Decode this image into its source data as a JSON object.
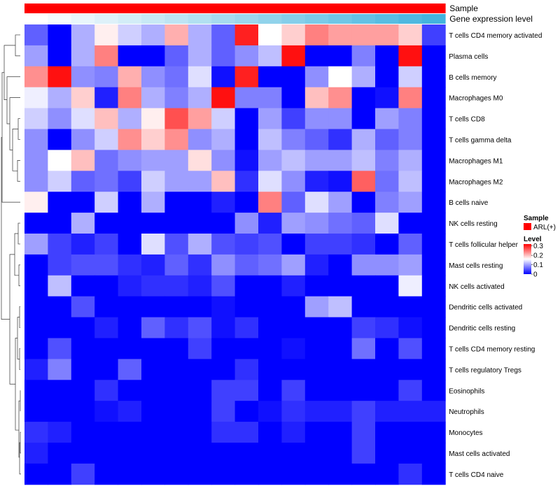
{
  "chart_data": {
    "type": "heatmap",
    "title": "",
    "annotation_tracks": [
      {
        "label": "Sample",
        "colors": [
          "#ff0000"
        ]
      },
      {
        "label": "Gene expression level",
        "colors": [
          "#ffffff",
          "#f4fafd",
          "#e9f6fb",
          "#def1f9",
          "#d3edf7",
          "#c8e9f5",
          "#bde4f3",
          "#b2e0f1",
          "#a7dbef",
          "#9cd7ed",
          "#91d3eb",
          "#86ceea",
          "#7bcae8",
          "#70c6e6",
          "#65c1e4",
          "#5abde2",
          "#4fb8e0",
          "#44b4de"
        ]
      }
    ],
    "legend": {
      "sample_title": "Sample",
      "sample_item": "ARL(+)",
      "sample_color": "#ff0000",
      "level_title": "Level",
      "level_ticks": [
        "0.3",
        "0.2",
        "0.1",
        "0"
      ],
      "level_tick_values": [
        0.3,
        0.2,
        0.1,
        0
      ],
      "level_range": [
        0,
        0.32
      ],
      "colors": {
        "low": "#0000ff",
        "mid": "#ffffff",
        "high": "#ff0000"
      }
    },
    "rows": [
      "T cells CD4 memory activated",
      "Plasma cells",
      "B cells memory",
      "Macrophages M0",
      "T cells CD8",
      "T cells gamma delta",
      "Macrophages M1",
      "Macrophages M2",
      "B cells naive",
      "NK cells resting",
      "T cells follicular helper",
      "Mast cells resting",
      "NK cells activated",
      "Dendritic cells activated",
      "Dendritic cells resting",
      "T cells CD4 memory resting",
      "T cells regulatory  Tregs",
      "Eosinophils",
      "Neutrophils",
      "Monocytes",
      "Mast cells activated",
      "T cells CD4 naive"
    ],
    "values": [
      [
        0.06,
        0.0,
        0.11,
        0.17,
        0.13,
        0.11,
        0.21,
        0.11,
        0.06,
        0.3,
        0.16,
        0.19,
        0.24,
        0.22,
        0.22,
        0.22,
        0.19,
        0.04
      ],
      [
        0.1,
        0.0,
        0.11,
        0.24,
        0.0,
        0.0,
        0.06,
        0.11,
        0.06,
        0.09,
        0.12,
        0.31,
        0.0,
        0.0,
        0.08,
        0.0,
        0.31,
        0.0
      ],
      [
        0.23,
        0.31,
        0.09,
        0.08,
        0.21,
        0.09,
        0.07,
        0.14,
        0.01,
        0.3,
        0.0,
        0.0,
        0.09,
        0.16,
        0.11,
        0.0,
        0.13,
        0.0
      ],
      [
        0.15,
        0.11,
        0.19,
        0.02,
        0.24,
        0.11,
        0.08,
        0.11,
        0.31,
        0.08,
        0.08,
        0.0,
        0.2,
        0.23,
        0.0,
        0.01,
        0.24,
        0.0
      ],
      [
        0.13,
        0.09,
        0.14,
        0.2,
        0.11,
        0.17,
        0.27,
        0.22,
        0.13,
        0.0,
        0.1,
        0.04,
        0.09,
        0.09,
        0.0,
        0.1,
        0.08,
        0.0
      ],
      [
        0.09,
        0.0,
        0.09,
        0.13,
        0.23,
        0.19,
        0.23,
        0.09,
        0.11,
        0.0,
        0.12,
        0.08,
        0.06,
        0.03,
        0.11,
        0.06,
        0.08,
        0.0
      ],
      [
        0.09,
        0.16,
        0.2,
        0.07,
        0.09,
        0.1,
        0.1,
        0.18,
        0.09,
        0.01,
        0.1,
        0.12,
        0.1,
        0.1,
        0.12,
        0.08,
        0.11,
        0.0
      ],
      [
        0.09,
        0.13,
        0.06,
        0.07,
        0.04,
        0.13,
        0.1,
        0.1,
        0.2,
        0.03,
        0.14,
        0.09,
        0.02,
        0.01,
        0.26,
        0.07,
        0.12,
        0.0
      ],
      [
        0.17,
        0.0,
        0.0,
        0.13,
        0.0,
        0.11,
        0.0,
        0.0,
        0.02,
        0.0,
        0.24,
        0.06,
        0.14,
        0.1,
        0.0,
        0.08,
        0.1,
        0.0
      ],
      [
        0.0,
        0.0,
        0.11,
        0.0,
        0.0,
        0.0,
        0.0,
        0.0,
        0.0,
        0.09,
        0.02,
        0.1,
        0.09,
        0.07,
        0.06,
        0.14,
        0.0,
        0.0
      ],
      [
        0.1,
        0.04,
        0.02,
        0.04,
        0.0,
        0.14,
        0.05,
        0.11,
        0.05,
        0.04,
        0.05,
        0.0,
        0.04,
        0.04,
        0.03,
        0.0,
        0.06,
        0.0
      ],
      [
        0.0,
        0.04,
        0.05,
        0.05,
        0.03,
        0.02,
        0.06,
        0.03,
        0.09,
        0.06,
        0.07,
        0.1,
        0.02,
        0.0,
        0.09,
        0.09,
        0.1,
        0.0
      ],
      [
        0.0,
        0.12,
        0.0,
        0.0,
        0.02,
        0.03,
        0.03,
        0.02,
        0.05,
        0.0,
        0.0,
        0.02,
        0.0,
        0.0,
        0.0,
        0.0,
        0.15,
        0.0
      ],
      [
        0.0,
        0.0,
        0.05,
        0.0,
        0.0,
        0.0,
        0.0,
        0.0,
        0.01,
        0.0,
        0.0,
        0.0,
        0.1,
        0.12,
        0.0,
        0.0,
        0.0,
        0.0
      ],
      [
        0.0,
        0.0,
        0.0,
        0.02,
        0.0,
        0.06,
        0.03,
        0.05,
        0.01,
        0.03,
        0.0,
        0.0,
        0.0,
        0.0,
        0.04,
        0.03,
        0.01,
        0.0
      ],
      [
        0.0,
        0.05,
        0.0,
        0.0,
        0.0,
        0.0,
        0.0,
        0.04,
        0.0,
        0.0,
        0.0,
        0.01,
        0.0,
        0.0,
        0.07,
        0.0,
        0.05,
        0.0
      ],
      [
        0.02,
        0.08,
        0.0,
        0.0,
        0.06,
        0.0,
        0.0,
        0.0,
        0.0,
        0.03,
        0.0,
        0.0,
        0.0,
        0.0,
        0.0,
        0.0,
        0.0,
        0.0
      ],
      [
        0.0,
        0.0,
        0.0,
        0.03,
        0.0,
        0.0,
        0.0,
        0.0,
        0.04,
        0.04,
        0.0,
        0.04,
        0.0,
        0.0,
        0.0,
        0.0,
        0.04,
        0.0
      ],
      [
        0.0,
        0.0,
        0.0,
        0.01,
        0.02,
        0.0,
        0.0,
        0.0,
        0.04,
        0.0,
        0.01,
        0.03,
        0.02,
        0.02,
        0.04,
        0.02,
        0.02,
        0.02
      ],
      [
        0.03,
        0.02,
        0.0,
        0.0,
        0.0,
        0.0,
        0.0,
        0.0,
        0.03,
        0.03,
        0.0,
        0.02,
        0.0,
        0.0,
        0.04,
        0.0,
        0.0,
        0.0
      ],
      [
        0.02,
        0.0,
        0.0,
        0.0,
        0.0,
        0.0,
        0.0,
        0.0,
        0.0,
        0.0,
        0.0,
        0.0,
        0.0,
        0.0,
        0.04,
        0.0,
        0.0,
        0.0
      ],
      [
        0.0,
        0.0,
        0.04,
        0.0,
        0.0,
        0.0,
        0.0,
        0.0,
        0.0,
        0.0,
        0.0,
        0.0,
        0.0,
        0.0,
        0.0,
        0.0,
        0.03,
        0.0
      ]
    ],
    "xlabel": "",
    "ylabel": ""
  }
}
